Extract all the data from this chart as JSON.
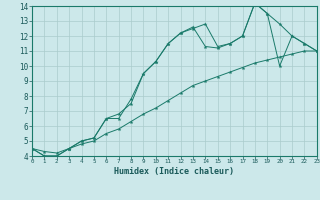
{
  "xlabel": "Humidex (Indice chaleur)",
  "bg_color": "#cce8ea",
  "grid_color": "#aacccc",
  "line_color": "#1a7a6a",
  "xlim": [
    0,
    23
  ],
  "ylim": [
    4,
    14
  ],
  "xticks": [
    0,
    1,
    2,
    3,
    4,
    5,
    6,
    7,
    8,
    9,
    10,
    11,
    12,
    13,
    14,
    15,
    16,
    17,
    18,
    19,
    20,
    21,
    22,
    23
  ],
  "yticks": [
    4,
    5,
    6,
    7,
    8,
    9,
    10,
    11,
    12,
    13,
    14
  ],
  "curve1_x": [
    0,
    1,
    2,
    3,
    4,
    5,
    6,
    7,
    8,
    9,
    10,
    11,
    12,
    13,
    14,
    15,
    16,
    17,
    18,
    19,
    20,
    21,
    22,
    23
  ],
  "curve1_y": [
    4.5,
    4.0,
    4.0,
    4.5,
    5.0,
    5.2,
    6.5,
    6.5,
    7.8,
    9.5,
    10.3,
    11.5,
    12.2,
    12.5,
    12.8,
    11.3,
    11.5,
    12.0,
    14.2,
    13.5,
    12.8,
    12.0,
    11.5,
    11.0
  ],
  "curve2_x": [
    0,
    1,
    2,
    3,
    4,
    5,
    6,
    7,
    8,
    9,
    10,
    11,
    12,
    13,
    14,
    15,
    16,
    17,
    18,
    19,
    20,
    21,
    22,
    23
  ],
  "curve2_y": [
    4.5,
    4.0,
    4.0,
    4.5,
    5.0,
    5.2,
    6.5,
    6.8,
    7.5,
    9.5,
    10.3,
    11.5,
    12.2,
    12.6,
    11.3,
    11.2,
    11.5,
    12.0,
    14.2,
    13.5,
    10.0,
    12.0,
    11.5,
    11.0
  ],
  "curve3_x": [
    0,
    1,
    2,
    3,
    4,
    5,
    6,
    7,
    8,
    9,
    10,
    11,
    12,
    13,
    14,
    15,
    16,
    17,
    18,
    19,
    20,
    21,
    22,
    23
  ],
  "curve3_y": [
    4.5,
    4.3,
    4.2,
    4.5,
    4.8,
    5.0,
    5.5,
    5.8,
    6.3,
    6.8,
    7.2,
    7.7,
    8.2,
    8.7,
    9.0,
    9.3,
    9.6,
    9.9,
    10.2,
    10.4,
    10.6,
    10.8,
    11.0,
    11.0
  ]
}
